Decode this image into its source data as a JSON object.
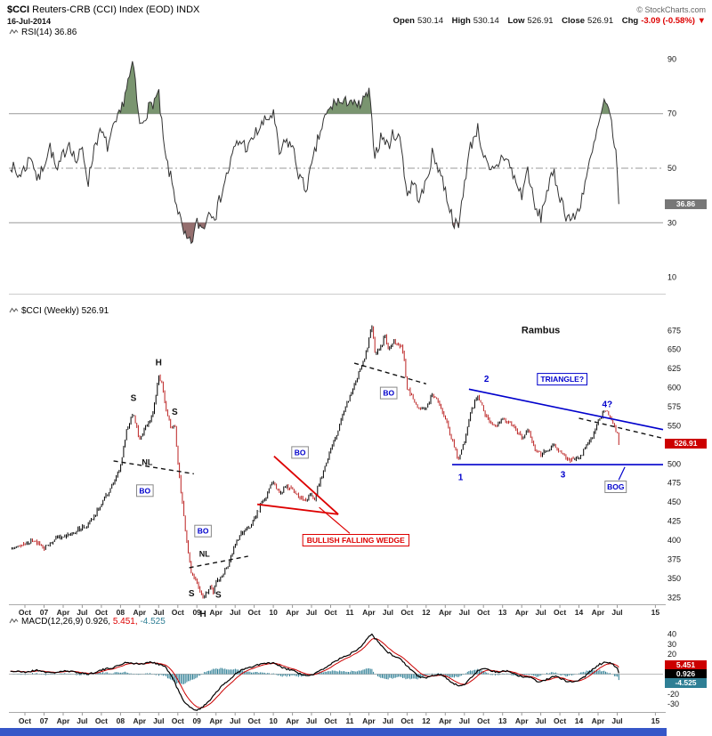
{
  "header": {
    "symbol": "$CCI",
    "title_rest": "Reuters-CRB (CCI) Index (EOD) INDX",
    "copyright": "© StockCharts.com",
    "date": "16-Jul-2014",
    "quote": {
      "open_label": "Open",
      "open": "530.14",
      "high_label": "High",
      "high": "530.14",
      "low_label": "Low",
      "low": "526.91",
      "close_label": "Close",
      "close": "526.91",
      "chg_label": "Chg",
      "chg": "-3.09 (-0.58%)",
      "chg_arrow": "▼"
    }
  },
  "panels": {
    "rsi": {
      "label": "RSI(14) 36.86",
      "badge": "36.86"
    },
    "price": {
      "label": "$CCI (Weekly) 526.91",
      "badge": "526.91",
      "watermark": "Rambus"
    },
    "macd": {
      "label_macd": "MACD(12,26,9) 0.926,",
      "label_signal": "5.451,",
      "label_hist": "-4.525",
      "badge_signal": "5.451",
      "badge_macd": "0.926",
      "badge_hist": "-4.525"
    }
  },
  "colors": {
    "annotation_blue": "#0000cc",
    "annotation_red": "#dd0000",
    "hist_teal": "#2f7f95",
    "signal_red": "#cc0000",
    "rsi_over": "#6b8a60",
    "rsi_under": "#8a5f5f",
    "up_bar": "#000000",
    "down_bar": "#bb2222",
    "badge_gray": "#777777"
  },
  "x_axis": {
    "range": [
      2006.54,
      2015.1
    ],
    "ticks": [
      {
        "t": 2006.75,
        "label": "Oct"
      },
      {
        "t": 2007.0,
        "label": "07"
      },
      {
        "t": 2007.25,
        "label": "Apr"
      },
      {
        "t": 2007.5,
        "label": "Jul"
      },
      {
        "t": 2007.75,
        "label": "Oct"
      },
      {
        "t": 2008.0,
        "label": "08"
      },
      {
        "t": 2008.25,
        "label": "Apr"
      },
      {
        "t": 2008.5,
        "label": "Jul"
      },
      {
        "t": 2008.75,
        "label": "Oct"
      },
      {
        "t": 2009.0,
        "label": "09"
      },
      {
        "t": 2009.25,
        "label": "Apr"
      },
      {
        "t": 2009.5,
        "label": "Jul"
      },
      {
        "t": 2009.75,
        "label": "Oct"
      },
      {
        "t": 2010.0,
        "label": "10"
      },
      {
        "t": 2010.25,
        "label": "Apr"
      },
      {
        "t": 2010.5,
        "label": "Jul"
      },
      {
        "t": 2010.75,
        "label": "Oct"
      },
      {
        "t": 2011.0,
        "label": "11"
      },
      {
        "t": 2011.25,
        "label": "Apr"
      },
      {
        "t": 2011.5,
        "label": "Jul"
      },
      {
        "t": 2011.75,
        "label": "Oct"
      },
      {
        "t": 2012.0,
        "label": "12"
      },
      {
        "t": 2012.25,
        "label": "Apr"
      },
      {
        "t": 2012.5,
        "label": "Jul"
      },
      {
        "t": 2012.75,
        "label": "Oct"
      },
      {
        "t": 2013.0,
        "label": "13"
      },
      {
        "t": 2013.25,
        "label": "Apr"
      },
      {
        "t": 2013.5,
        "label": "Jul"
      },
      {
        "t": 2013.75,
        "label": "Oct"
      },
      {
        "t": 2014.0,
        "label": "14"
      },
      {
        "t": 2014.25,
        "label": "Apr"
      },
      {
        "t": 2014.5,
        "label": "Jul"
      },
      {
        "t": 2015.0,
        "label": "15"
      }
    ]
  },
  "chart_data": [
    {
      "name": "rsi",
      "type": "line",
      "title": "RSI(14)",
      "last": 36.86,
      "ylim": [
        4,
        97
      ],
      "yticks": [
        90,
        70,
        50,
        30,
        10
      ],
      "hlines": [
        {
          "v": 70
        },
        {
          "v": 50,
          "dash": true
        },
        {
          "v": 30
        }
      ],
      "bands": {
        "over": 70,
        "under": 30
      },
      "x": [
        2006.56,
        2006.65,
        2006.75,
        2006.83,
        2006.92,
        2007.0,
        2007.08,
        2007.17,
        2007.25,
        2007.33,
        2007.42,
        2007.5,
        2007.58,
        2007.67,
        2007.75,
        2007.83,
        2007.92,
        2008.0,
        2008.08,
        2008.17,
        2008.25,
        2008.33,
        2008.42,
        2008.5,
        2008.58,
        2008.67,
        2008.75,
        2008.83,
        2008.92,
        2009.0,
        2009.08,
        2009.17,
        2009.25,
        2009.33,
        2009.42,
        2009.5,
        2009.58,
        2009.67,
        2009.75,
        2009.83,
        2009.92,
        2010.0,
        2010.08,
        2010.17,
        2010.25,
        2010.33,
        2010.42,
        2010.5,
        2010.58,
        2010.67,
        2010.75,
        2010.83,
        2010.92,
        2011.0,
        2011.08,
        2011.17,
        2011.25,
        2011.33,
        2011.42,
        2011.5,
        2011.58,
        2011.67,
        2011.75,
        2011.83,
        2011.92,
        2012.0,
        2012.08,
        2012.17,
        2012.25,
        2012.33,
        2012.42,
        2012.5,
        2012.58,
        2012.67,
        2012.75,
        2012.83,
        2012.92,
        2013.0,
        2013.08,
        2013.17,
        2013.25,
        2013.33,
        2013.42,
        2013.5,
        2013.58,
        2013.67,
        2013.75,
        2013.83,
        2013.92,
        2014.0,
        2014.08,
        2014.17,
        2014.25,
        2014.33,
        2014.42,
        2014.46,
        2014.5,
        2014.54
      ],
      "values": [
        52,
        47,
        50,
        55,
        45,
        52,
        58,
        48,
        55,
        60,
        52,
        57,
        45,
        60,
        63,
        58,
        65,
        70,
        80,
        88,
        65,
        70,
        74,
        77,
        55,
        45,
        35,
        25,
        22,
        30,
        28,
        35,
        33,
        42,
        50,
        58,
        60,
        57,
        62,
        65,
        68,
        70,
        55,
        60,
        58,
        48,
        42,
        50,
        60,
        68,
        72,
        75,
        73,
        76,
        72,
        74,
        78,
        55,
        62,
        58,
        63,
        60,
        40,
        45,
        38,
        45,
        55,
        50,
        42,
        33,
        27,
        45,
        58,
        65,
        55,
        48,
        50,
        55,
        52,
        45,
        40,
        50,
        35,
        32,
        42,
        48,
        40,
        33,
        31,
        35,
        45,
        55,
        65,
        74,
        68,
        60,
        50,
        36.86
      ]
    },
    {
      "name": "price",
      "type": "ohlc",
      "title": "$CCI (Weekly)",
      "last": 526.91,
      "ylim": [
        316,
        694
      ],
      "yticks": [
        675,
        650,
        625,
        600,
        575,
        550,
        500,
        475,
        450,
        425,
        400,
        375,
        350,
        325
      ],
      "x": [
        2006.56,
        2006.65,
        2006.75,
        2006.83,
        2006.92,
        2007.0,
        2007.08,
        2007.17,
        2007.25,
        2007.33,
        2007.42,
        2007.5,
        2007.58,
        2007.67,
        2007.75,
        2007.83,
        2007.92,
        2008.0,
        2008.08,
        2008.17,
        2008.25,
        2008.33,
        2008.42,
        2008.5,
        2008.54,
        2008.58,
        2008.67,
        2008.71,
        2008.75,
        2008.83,
        2008.92,
        2009.0,
        2009.04,
        2009.08,
        2009.17,
        2009.21,
        2009.25,
        2009.33,
        2009.42,
        2009.5,
        2009.58,
        2009.67,
        2009.75,
        2009.83,
        2009.92,
        2010.0,
        2010.08,
        2010.17,
        2010.25,
        2010.33,
        2010.42,
        2010.5,
        2010.54,
        2010.58,
        2010.67,
        2010.75,
        2010.83,
        2010.92,
        2011.0,
        2011.08,
        2011.17,
        2011.25,
        2011.29,
        2011.33,
        2011.42,
        2011.46,
        2011.5,
        2011.58,
        2011.67,
        2011.71,
        2011.75,
        2011.83,
        2011.92,
        2012.0,
        2012.08,
        2012.17,
        2012.25,
        2012.33,
        2012.42,
        2012.5,
        2012.58,
        2012.67,
        2012.75,
        2012.83,
        2012.92,
        2013.0,
        2013.08,
        2013.17,
        2013.25,
        2013.33,
        2013.42,
        2013.5,
        2013.58,
        2013.67,
        2013.75,
        2013.83,
        2013.92,
        2014.0,
        2014.08,
        2014.17,
        2014.25,
        2014.33,
        2014.38,
        2014.42,
        2014.46,
        2014.5,
        2014.54
      ],
      "close": [
        388,
        395,
        393,
        400,
        397,
        390,
        398,
        404,
        405,
        409,
        412,
        418,
        420,
        435,
        448,
        460,
        476,
        495,
        545,
        568,
        530,
        548,
        565,
        615,
        605,
        580,
        545,
        552,
        500,
        430,
        360,
        347,
        330,
        322,
        340,
        332,
        345,
        352,
        370,
        395,
        408,
        415,
        428,
        445,
        460,
        478,
        462,
        470,
        468,
        458,
        450,
        462,
        452,
        470,
        495,
        520,
        540,
        565,
        590,
        610,
        630,
        662,
        680,
        645,
        655,
        670,
        650,
        660,
        655,
        640,
        600,
        585,
        570,
        575,
        590,
        580,
        560,
        535,
        505,
        530,
        565,
        590,
        570,
        555,
        550,
        560,
        555,
        545,
        535,
        545,
        520,
        512,
        518,
        525,
        515,
        508,
        505,
        507,
        520,
        535,
        555,
        570,
        565,
        560,
        550,
        540,
        527
      ],
      "annotations": {
        "lines": [
          {
            "x1": 2012.56,
            "y1": 598,
            "x2": 2015.1,
            "y2": 545,
            "color": "blue",
            "w": 1.6
          },
          {
            "x1": 2012.34,
            "y1": 499,
            "x2": 2015.1,
            "y2": 499,
            "color": "blue",
            "w": 1.6
          },
          {
            "x1": 2010.01,
            "y1": 510,
            "x2": 2010.85,
            "y2": 434,
            "color": "red",
            "w": 1.8
          },
          {
            "x1": 2009.79,
            "y1": 447,
            "x2": 2010.85,
            "y2": 434,
            "color": "red",
            "w": 1.8
          },
          {
            "x1": 2010.6,
            "y1": 443,
            "x2": 2011.0,
            "y2": 409,
            "color": "red",
            "w": 1.2
          },
          {
            "x1": 2014.52,
            "y1": 479,
            "x2": 2014.6,
            "y2": 496,
            "color": "blue",
            "w": 1.2
          },
          {
            "x1": 2007.91,
            "y1": 504,
            "x2": 2008.96,
            "y2": 487,
            "color": "black",
            "w": 1.4,
            "dash": true
          },
          {
            "x1": 2008.9,
            "y1": 364,
            "x2": 2009.67,
            "y2": 379,
            "color": "black",
            "w": 1.4,
            "dash": true
          },
          {
            "x1": 2011.06,
            "y1": 632,
            "x2": 2012.0,
            "y2": 605,
            "color": "black",
            "w": 1.4,
            "dash": true
          },
          {
            "x1": 2014.0,
            "y1": 560,
            "x2": 2015.08,
            "y2": 534,
            "color": "black",
            "w": 1.4,
            "dash": true
          }
        ],
        "texts": [
          {
            "t": 2013.5,
            "p": 675,
            "s": "Rambus",
            "c": "black",
            "size": 11
          },
          {
            "t": 2008.17,
            "p": 586,
            "s": "S",
            "c": "black"
          },
          {
            "t": 2008.5,
            "p": 633,
            "s": "H",
            "c": "black"
          },
          {
            "t": 2008.71,
            "p": 568,
            "s": "S",
            "c": "black"
          },
          {
            "t": 2008.35,
            "p": 502,
            "s": "NL",
            "c": "black",
            "size": 9
          },
          {
            "t": 2008.93,
            "p": 330,
            "s": "S",
            "c": "black"
          },
          {
            "t": 2009.08,
            "p": 303,
            "s": "H",
            "c": "black"
          },
          {
            "t": 2009.28,
            "p": 328,
            "s": "S",
            "c": "black"
          },
          {
            "t": 2009.1,
            "p": 382,
            "s": "NL",
            "c": "black",
            "size": 9
          },
          {
            "t": 2012.45,
            "p": 482,
            "s": "1",
            "c": "blue"
          },
          {
            "t": 2012.79,
            "p": 611,
            "s": "2",
            "c": "blue"
          },
          {
            "t": 2013.79,
            "p": 486,
            "s": "3",
            "c": "blue"
          },
          {
            "t": 2014.37,
            "p": 578,
            "s": "4?",
            "c": "blue"
          }
        ],
        "boxes": [
          {
            "t": 2008.32,
            "p": 465,
            "s": "BO",
            "c": "blue",
            "bc": "gray"
          },
          {
            "t": 2009.08,
            "p": 412,
            "s": "BO",
            "c": "blue",
            "bc": "gray"
          },
          {
            "t": 2010.35,
            "p": 515,
            "s": "BO",
            "c": "blue",
            "bc": "gray"
          },
          {
            "t": 2011.51,
            "p": 593,
            "s": "BO",
            "c": "blue",
            "bc": "gray"
          },
          {
            "t": 2013.78,
            "p": 611,
            "s": "TRIANGLE?",
            "c": "blue",
            "bc": "blue"
          },
          {
            "t": 2014.48,
            "p": 470,
            "s": "BOG",
            "c": "blue",
            "bc": "gray"
          },
          {
            "t": 2011.08,
            "p": 400,
            "s": "BULLISH FALLING WEDGE",
            "c": "red",
            "bc": "red"
          }
        ]
      }
    },
    {
      "name": "macd",
      "type": "macd",
      "title": "MACD(12,26,9)",
      "last": {
        "macd": 0.926,
        "signal": 5.451,
        "hist": -4.525
      },
      "ylim": [
        -38,
        46
      ],
      "yticks": [
        40,
        30,
        20,
        10,
        0,
        -10,
        -20,
        -30
      ],
      "x": [
        2006.56,
        2006.75,
        2006.92,
        2007.08,
        2007.25,
        2007.42,
        2007.58,
        2007.75,
        2007.92,
        2008.08,
        2008.25,
        2008.42,
        2008.58,
        2008.67,
        2008.75,
        2008.83,
        2008.92,
        2009.0,
        2009.08,
        2009.17,
        2009.25,
        2009.33,
        2009.42,
        2009.5,
        2009.58,
        2009.67,
        2009.75,
        2009.83,
        2009.92,
        2010.0,
        2010.08,
        2010.17,
        2010.25,
        2010.33,
        2010.42,
        2010.5,
        2010.58,
        2010.67,
        2010.75,
        2010.83,
        2010.92,
        2011.0,
        2011.08,
        2011.17,
        2011.25,
        2011.29,
        2011.33,
        2011.42,
        2011.5,
        2011.58,
        2011.67,
        2011.75,
        2011.83,
        2011.92,
        2012.0,
        2012.08,
        2012.17,
        2012.25,
        2012.33,
        2012.42,
        2012.5,
        2012.58,
        2012.67,
        2012.75,
        2012.83,
        2012.92,
        2013.0,
        2013.08,
        2013.17,
        2013.25,
        2013.33,
        2013.42,
        2013.5,
        2013.58,
        2013.67,
        2013.75,
        2013.83,
        2013.92,
        2014.0,
        2014.08,
        2014.17,
        2014.25,
        2014.33,
        2014.42,
        2014.5,
        2014.54
      ],
      "macd": [
        3,
        2,
        4,
        1,
        3,
        2,
        0,
        4,
        7,
        12,
        10,
        12,
        8,
        -2,
        -15,
        -28,
        -34,
        -36,
        -33,
        -26,
        -18,
        -12,
        -6,
        0,
        4,
        6,
        8,
        10,
        11,
        11,
        8,
        5,
        4,
        1,
        -2,
        -1,
        2,
        6,
        10,
        14,
        17,
        20,
        24,
        30,
        38,
        41,
        36,
        28,
        22,
        18,
        15,
        8,
        2,
        -3,
        -4,
        -1,
        0,
        -3,
        -8,
        -12,
        -10,
        -4,
        3,
        6,
        4,
        2,
        3,
        3,
        0,
        -3,
        -2,
        -6,
        -8,
        -5,
        -2,
        -4,
        -7,
        -8,
        -6,
        -2,
        4,
        9,
        12,
        11,
        6,
        0.926
      ]
    }
  ]
}
